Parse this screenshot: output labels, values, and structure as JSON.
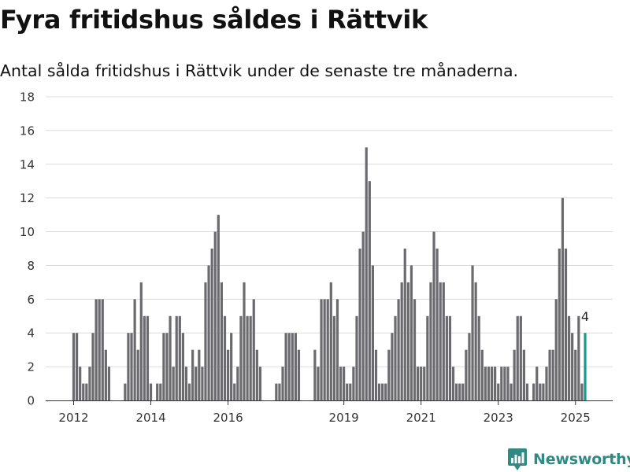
{
  "title": "Fyra fritidshus såldes i Rättvik",
  "subtitle": "Antal sålda fritidshus i Rättvik under de senaste tre månaderna.",
  "brand": {
    "name": "Newsworthy",
    "icon": "newsworthy-logo-icon",
    "color": "#2f8a84"
  },
  "chart_data": {
    "type": "bar",
    "xlabel": "",
    "ylabel": "",
    "ylim": [
      0,
      18
    ],
    "yticks": [
      0,
      2,
      4,
      6,
      8,
      10,
      12,
      14,
      16,
      18
    ],
    "xticks": [
      {
        "label": "2012",
        "index": 0
      },
      {
        "label": "2014",
        "index": 24
      },
      {
        "label": "2016",
        "index": 48
      },
      {
        "label": "2019",
        "index": 84
      },
      {
        "label": "2021",
        "index": 108
      },
      {
        "label": "2023",
        "index": 132
      },
      {
        "label": "2025",
        "index": 156
      }
    ],
    "grid": true,
    "colors": {
      "bar": "#6b6a6f",
      "highlight": "#1a9a8e",
      "grid": "#dcdcdc"
    },
    "highlight_label": "4",
    "values": [
      4,
      4,
      2,
      1,
      1,
      2,
      4,
      6,
      6,
      6,
      3,
      2,
      0,
      0,
      0,
      0,
      1,
      4,
      4,
      6,
      3,
      7,
      5,
      5,
      1,
      0,
      1,
      1,
      4,
      4,
      5,
      2,
      5,
      5,
      4,
      2,
      1,
      3,
      2,
      3,
      2,
      7,
      8,
      9,
      10,
      11,
      7,
      5,
      3,
      4,
      1,
      2,
      5,
      7,
      5,
      5,
      6,
      3,
      2,
      0,
      0,
      0,
      0,
      1,
      1,
      2,
      4,
      4,
      4,
      4,
      3,
      0,
      0,
      0,
      0,
      3,
      2,
      6,
      6,
      6,
      7,
      5,
      6,
      2,
      2,
      1,
      1,
      2,
      5,
      9,
      10,
      15,
      13,
      8,
      3,
      1,
      1,
      1,
      3,
      4,
      5,
      6,
      7,
      9,
      7,
      8,
      6,
      2,
      2,
      2,
      5,
      7,
      10,
      9,
      7,
      7,
      5,
      5,
      2,
      1,
      1,
      1,
      3,
      4,
      8,
      7,
      5,
      3,
      2,
      2,
      2,
      2,
      1,
      2,
      2,
      2,
      1,
      3,
      5,
      5,
      3,
      1,
      0,
      1,
      2,
      1,
      1,
      2,
      3,
      3,
      6,
      9,
      12,
      9,
      5,
      4,
      3,
      5,
      1,
      4
    ]
  }
}
